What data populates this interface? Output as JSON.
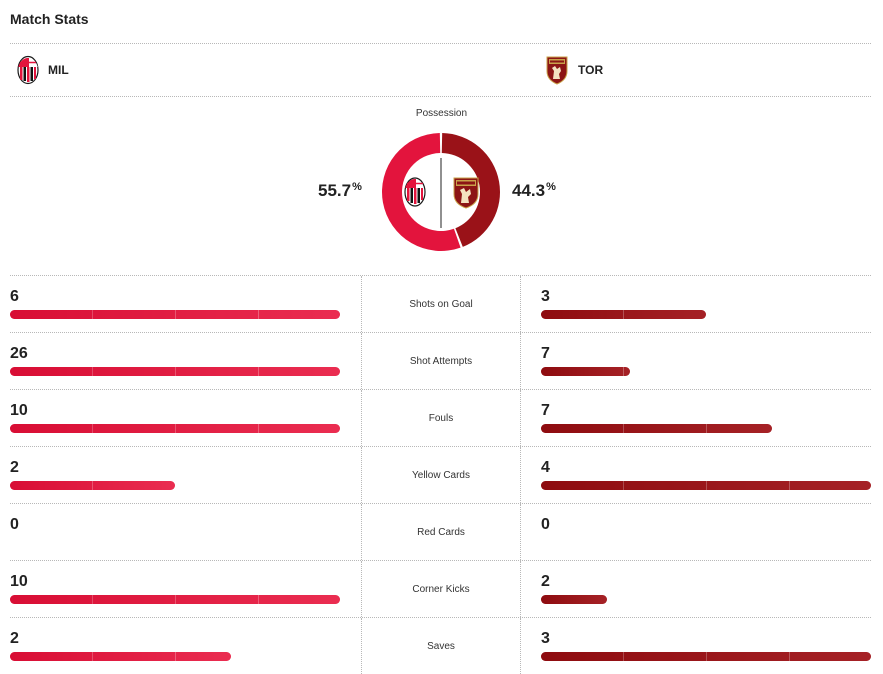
{
  "header": {
    "title": "Match Stats"
  },
  "teams": {
    "home": {
      "abbr": "MIL",
      "color": "#e3143d",
      "logo_icon": "ac-milan-crest-icon"
    },
    "away": {
      "abbr": "TOR",
      "color": "#9a1218",
      "logo_icon": "torino-crest-icon"
    }
  },
  "possession": {
    "label": "Possession",
    "home_value": "55.7",
    "away_value": "44.3",
    "unit": "%",
    "home_fraction": 0.557,
    "away_fraction": 0.443
  },
  "stats": [
    {
      "label": "Shots on Goal",
      "home": "6",
      "away": "3",
      "home_fill": 1.0,
      "away_fill": 0.5
    },
    {
      "label": "Shot Attempts",
      "home": "26",
      "away": "7",
      "home_fill": 1.0,
      "away_fill": 0.27
    },
    {
      "label": "Fouls",
      "home": "10",
      "away": "7",
      "home_fill": 1.0,
      "away_fill": 0.7
    },
    {
      "label": "Yellow Cards",
      "home": "2",
      "away": "4",
      "home_fill": 0.5,
      "away_fill": 1.0
    },
    {
      "label": "Red Cards",
      "home": "0",
      "away": "0",
      "home_fill": 0,
      "away_fill": 0
    },
    {
      "label": "Corner Kicks",
      "home": "10",
      "away": "2",
      "home_fill": 1.0,
      "away_fill": 0.2
    },
    {
      "label": "Saves",
      "home": "2",
      "away": "3",
      "home_fill": 0.67,
      "away_fill": 1.0
    }
  ]
}
